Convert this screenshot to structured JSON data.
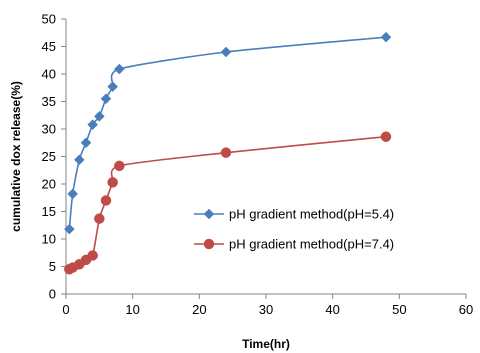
{
  "chart_data": {
    "type": "line",
    "title": "",
    "xlabel": "Time(hr)",
    "ylabel": "cumulative dox release(%)",
    "xlim": [
      0,
      60
    ],
    "ylim": [
      0,
      50
    ],
    "xticks": [
      0,
      10,
      20,
      30,
      40,
      50,
      60
    ],
    "yticks": [
      0,
      5,
      10,
      15,
      20,
      25,
      30,
      35,
      40,
      45,
      50
    ],
    "grid": false,
    "legend_position": "right",
    "series": [
      {
        "name": "pH gradient method(pH=5.4)",
        "color": "#4a7ebb",
        "marker": "diamond",
        "x": [
          0.5,
          1,
          2,
          3,
          4,
          5,
          6,
          7,
          8,
          24,
          48
        ],
        "y": [
          11.8,
          18.2,
          24.4,
          27.5,
          30.8,
          32.3,
          35.5,
          37.7,
          40.9,
          44.0,
          46.7
        ]
      },
      {
        "name": "pH gradient method(pH=7.4)",
        "color": "#be4b48",
        "marker": "circle",
        "x": [
          0.5,
          1,
          2,
          3,
          4,
          5,
          6,
          7,
          8,
          24,
          48
        ],
        "y": [
          4.5,
          4.8,
          5.4,
          6.2,
          7.0,
          13.7,
          17.0,
          20.3,
          23.3,
          25.7,
          28.6
        ]
      }
    ]
  }
}
